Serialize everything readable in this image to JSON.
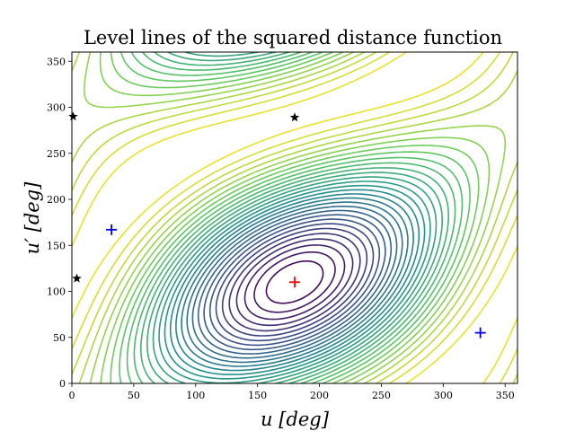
{
  "chart_data": {
    "type": "contour",
    "title": "Level lines of the squared distance function",
    "xlabel": "u [deg]",
    "ylabel": "u′ [deg]",
    "xlim": [
      0,
      360
    ],
    "ylim": [
      0,
      360
    ],
    "xticks": [
      0,
      50,
      100,
      150,
      200,
      250,
      300,
      350
    ],
    "yticks": [
      0,
      50,
      100,
      150,
      200,
      250,
      300,
      350
    ],
    "colormap": [
      "#440154",
      "#3b528b",
      "#21918c",
      "#5ec962",
      "#fde725"
    ],
    "level_count": 30,
    "markers": [
      {
        "kind": "maximum",
        "symbol": "plus",
        "color": "#ff0000",
        "x": 180,
        "y": 110
      },
      {
        "kind": "minimum",
        "symbol": "plus",
        "color": "#0000ff",
        "x": 32,
        "y": 167
      },
      {
        "kind": "minimum",
        "symbol": "plus",
        "color": "#0000ff",
        "x": 330,
        "y": 55
      },
      {
        "kind": "saddle",
        "symbol": "star",
        "color": "#000000",
        "x": 1,
        "y": 290
      },
      {
        "kind": "saddle",
        "symbol": "star",
        "color": "#000000",
        "x": 4,
        "y": 114
      },
      {
        "kind": "saddle",
        "symbol": "star",
        "color": "#000000",
        "x": 180,
        "y": 289
      }
    ],
    "grid": false,
    "legend": "none"
  }
}
